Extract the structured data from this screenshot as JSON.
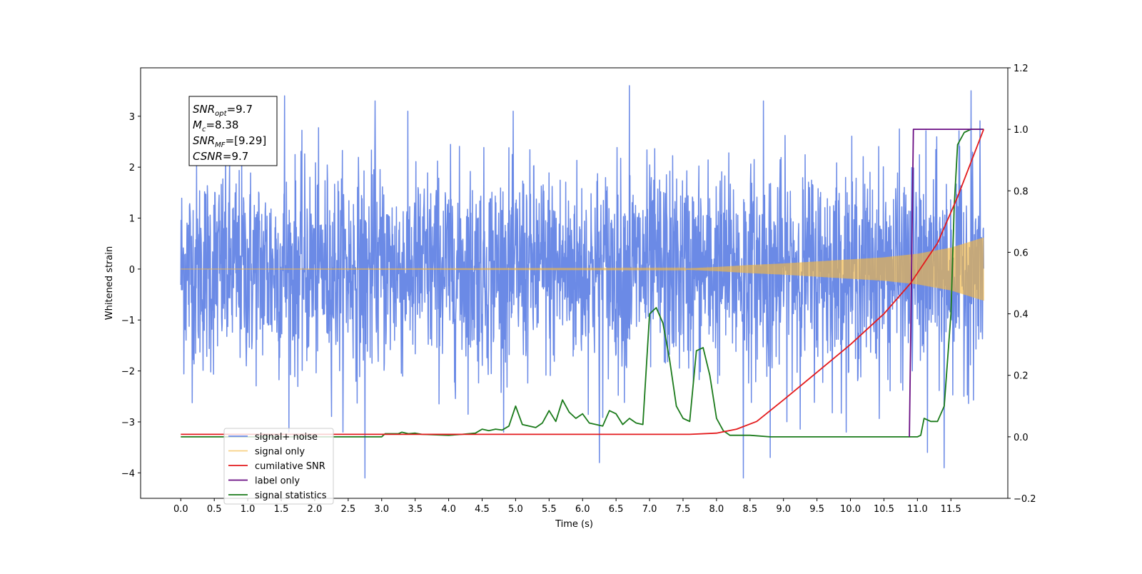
{
  "chart_data": {
    "type": "line",
    "xlabel": "Time (s)",
    "ylabel": "Whitened strain",
    "y2label": "",
    "xlim": [
      -0.6,
      12.35
    ],
    "ylim": [
      -4.5,
      3.95
    ],
    "y2lim": [
      -0.2,
      1.2
    ],
    "x_ticks": [
      0.0,
      0.5,
      1.0,
      1.5,
      2.0,
      2.5,
      3.0,
      3.5,
      4.0,
      4.5,
      5.0,
      5.5,
      6.0,
      6.5,
      7.0,
      7.5,
      8.0,
      8.5,
      9.0,
      9.5,
      10.0,
      10.5,
      11.0,
      11.5
    ],
    "x_tick_labels": [
      "0.0",
      "0.5",
      "1.0",
      "1.5",
      "2.0",
      "2.5",
      "3.0",
      "3.5",
      "4.0",
      "4.5",
      "5.0",
      "5.5",
      "6.0",
      "6.5",
      "7.0",
      "7.5",
      "8.0",
      "8.5",
      "9.0",
      "9.5",
      "10.0",
      "10.5",
      "11.0",
      "11.5"
    ],
    "y_ticks": [
      -4,
      -3,
      -2,
      -1,
      0,
      1,
      2,
      3
    ],
    "y_tick_labels": [
      "−4",
      "−3",
      "−2",
      "−1",
      "0",
      "1",
      "2",
      "3"
    ],
    "y2_ticks": [
      -0.2,
      0.0,
      0.2,
      0.4,
      0.6,
      0.8,
      1.0,
      1.2
    ],
    "y2_tick_labels": [
      "−0.2",
      "0.0",
      "0.2",
      "0.4",
      "0.6",
      "0.8",
      "1.0",
      "1.2"
    ],
    "grid": false,
    "legend_position": "lower-left",
    "annotation": [
      {
        "base": "SNR",
        "sub": "opt",
        "rest": "=9.7"
      },
      {
        "base": "M",
        "sub": "c",
        "rest": "=8.38"
      },
      {
        "base": "SNR",
        "sub": "MF",
        "rest": "=[9.29]"
      },
      {
        "base": "CSNR",
        "sub": "",
        "rest": "=9.7"
      }
    ],
    "series": [
      {
        "name": "signal+ noise",
        "axis": "left",
        "color": "#6b8ae6",
        "kind": "noisy_band",
        "x_range": [
          0.0,
          11.99
        ],
        "typical_range": [
          -2.0,
          2.0
        ],
        "peaks_high": [
          [
            1.55,
            3.4
          ],
          [
            2.9,
            3.3
          ],
          [
            6.7,
            3.6
          ],
          [
            11.8,
            3.5
          ],
          [
            8.7,
            3.3
          ]
        ],
        "peaks_low": [
          [
            2.75,
            -4.1
          ],
          [
            6.25,
            -3.8
          ],
          [
            8.4,
            -4.1
          ],
          [
            8.8,
            -3.7
          ],
          [
            11.4,
            -3.9
          ],
          [
            11.15,
            -3.6
          ]
        ]
      },
      {
        "name": "signal only",
        "axis": "left",
        "color": "#f5b942",
        "kind": "chirp_envelope",
        "x": [
          0.0,
          7.5,
          8.0,
          8.5,
          9.0,
          9.5,
          10.0,
          10.5,
          11.0,
          11.5,
          11.99
        ],
        "envelope": [
          0.0,
          0.01,
          0.04,
          0.08,
          0.11,
          0.15,
          0.19,
          0.23,
          0.3,
          0.42,
          0.62
        ]
      },
      {
        "name": "cumilative SNR",
        "axis": "right",
        "color": "#e31a1c",
        "x": [
          0.0,
          7.6,
          8.0,
          8.3,
          8.6,
          9.0,
          9.5,
          10.0,
          10.5,
          10.9,
          11.3,
          11.6,
          11.99
        ],
        "y": [
          0.008,
          0.008,
          0.012,
          0.025,
          0.05,
          0.12,
          0.21,
          0.3,
          0.4,
          0.5,
          0.63,
          0.78,
          1.0
        ]
      },
      {
        "name": "label only",
        "axis": "right",
        "color": "#6a0d83",
        "x": [
          10.88,
          10.94,
          11.99
        ],
        "y": [
          0.0,
          1.0,
          1.0
        ]
      },
      {
        "name": "signal statistics",
        "axis": "right",
        "color": "#1a7a1a",
        "x": [
          0.0,
          3.0,
          3.05,
          3.25,
          3.3,
          3.4,
          3.5,
          3.6,
          4.0,
          4.2,
          4.4,
          4.5,
          4.6,
          4.7,
          4.8,
          4.9,
          5.0,
          5.1,
          5.2,
          5.3,
          5.4,
          5.5,
          5.6,
          5.7,
          5.8,
          5.9,
          6.0,
          6.1,
          6.2,
          6.3,
          6.4,
          6.5,
          6.6,
          6.7,
          6.8,
          6.9,
          7.0,
          7.1,
          7.2,
          7.3,
          7.4,
          7.5,
          7.6,
          7.7,
          7.8,
          7.9,
          8.0,
          8.1,
          8.2,
          8.5,
          8.8,
          9.0,
          10.0,
          11.0,
          11.05,
          11.1,
          11.2,
          11.3,
          11.4,
          11.5,
          11.55,
          11.6,
          11.7,
          11.8,
          11.99
        ],
        "y": [
          0.0,
          0.0,
          0.01,
          0.01,
          0.015,
          0.01,
          0.012,
          0.008,
          0.005,
          0.008,
          0.012,
          0.025,
          0.02,
          0.025,
          0.022,
          0.035,
          0.1,
          0.04,
          0.035,
          0.03,
          0.045,
          0.085,
          0.05,
          0.12,
          0.08,
          0.06,
          0.075,
          0.045,
          0.04,
          0.035,
          0.085,
          0.075,
          0.04,
          0.06,
          0.045,
          0.04,
          0.4,
          0.42,
          0.37,
          0.25,
          0.1,
          0.06,
          0.05,
          0.28,
          0.29,
          0.2,
          0.06,
          0.02,
          0.005,
          0.005,
          0.0,
          0.0,
          0.0,
          0.0,
          0.005,
          0.06,
          0.05,
          0.05,
          0.1,
          0.4,
          0.75,
          0.95,
          0.99,
          1.0,
          1.0
        ]
      }
    ]
  }
}
